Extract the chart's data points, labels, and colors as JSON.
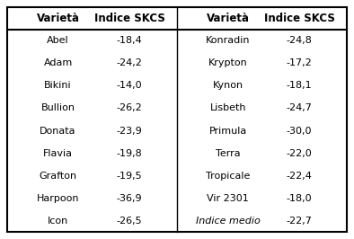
{
  "headers": [
    "Varietà",
    "Indice SKCS",
    "Varietà",
    "Indice SKCS"
  ],
  "rows": [
    [
      "Abel",
      "-18,4",
      "Konradin",
      "-24,8"
    ],
    [
      "Adam",
      "-24,2",
      "Krypton",
      "-17,2"
    ],
    [
      "Bikini",
      "-14,0",
      "Kynon",
      "-18,1"
    ],
    [
      "Bullion",
      "-26,2",
      "Lisbeth",
      "-24,7"
    ],
    [
      "Donata",
      "-23,9",
      "Primula",
      "-30,0"
    ],
    [
      "Flavia",
      "-19,8",
      "Terra",
      "-22,0"
    ],
    [
      "Grafton",
      "-19,5",
      "Tropicale",
      "-22,4"
    ],
    [
      "Harpoon",
      "-36,9",
      "Vir 2301",
      "-18,0"
    ],
    [
      "Icon",
      "-26,5",
      "Indice medio",
      "-22,7"
    ]
  ],
  "last_row_col2_italic": true,
  "border_color": "#000000",
  "bg_color": "#ffffff",
  "header_fontsize": 8.5,
  "body_fontsize": 8.0
}
